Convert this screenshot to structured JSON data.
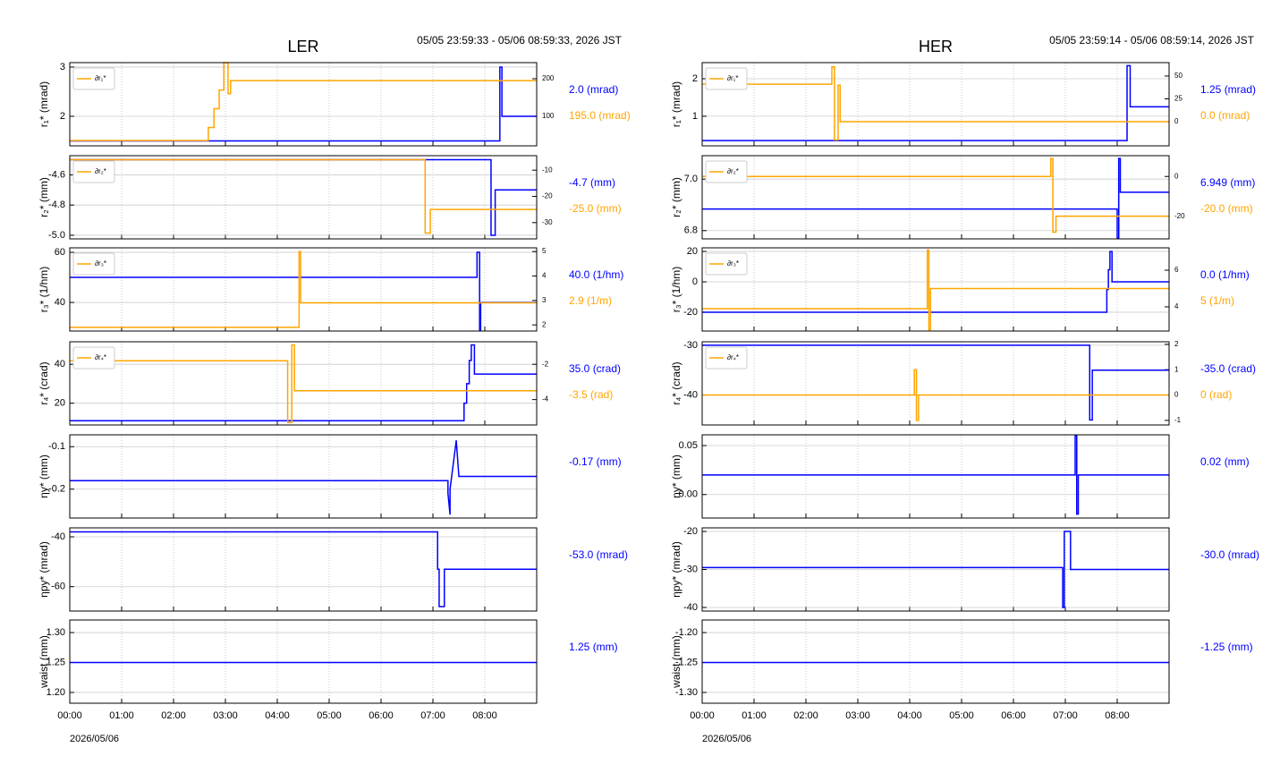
{
  "chart_data": [
    {
      "type": "line",
      "title": "LER",
      "subtitle": "05/05 23:59:33 - 05/06 08:59:33, 2026 JST",
      "ylabel": "r₁* (mrad)",
      "xlim": [
        0,
        9
      ],
      "xticks": [
        0,
        1,
        2,
        3,
        4,
        5,
        6,
        7,
        8
      ],
      "ylim": [
        1.4,
        3.09
      ],
      "yticks": [
        2,
        3
      ],
      "y2lim": [
        21,
        243
      ],
      "y2ticks": [
        100,
        200
      ],
      "grid": true,
      "series": [
        {
          "color": "#0000ff",
          "x": [
            0,
            8.29,
            8.29,
            8.33,
            8.33,
            9
          ],
          "values": [
            1.5,
            1.5,
            3.0,
            3.0,
            2.0,
            2.0
          ]
        },
        {
          "name": "∂r₁*",
          "color": "#ffa500",
          "axis": "y2",
          "x": [
            0,
            2.67,
            2.67,
            2.78,
            2.78,
            2.88,
            2.88,
            2.97,
            2.97,
            3.05,
            3.05,
            3.1,
            3.1,
            9
          ],
          "values": [
            35,
            35,
            70,
            70,
            120,
            120,
            170,
            170,
            243,
            243,
            160,
            160,
            195,
            195
          ]
        }
      ],
      "annotations": [
        {
          "text": "2.0 (mrad)",
          "color": "#0000ff"
        },
        {
          "text": "195.0 (mrad)",
          "color": "#ffa500"
        }
      ]
    },
    {
      "type": "line",
      "ylabel": "r₂* (mm)",
      "xlim": [
        0,
        9
      ],
      "xticks": [
        0,
        1,
        2,
        3,
        4,
        5,
        6,
        7,
        8
      ],
      "ylim": [
        -5.024,
        -4.473
      ],
      "yticks": [
        -4.6,
        -4.8,
        {
          "value": -5,
          "label": "-5.0"
        }
      ],
      "y2lim": [
        -36.2,
        -4.48
      ],
      "y2ticks": [
        -10,
        -20,
        -30
      ],
      "grid": true,
      "series": [
        {
          "color": "#0000ff",
          "x": [
            0,
            8.12,
            8.12,
            8.2,
            8.2,
            9
          ],
          "values": [
            -4.5,
            -4.5,
            -5.0,
            -5.0,
            -4.7,
            -4.7
          ]
        },
        {
          "name": "∂r₂*",
          "color": "#ffa500",
          "axis": "y2",
          "x": [
            0,
            6.85,
            6.85,
            6.95,
            6.95,
            9
          ],
          "values": [
            -6,
            -6,
            -34,
            -34,
            -25,
            -25
          ]
        }
      ],
      "annotations": [
        {
          "text": "-4.7 (mm)",
          "color": "#0000ff"
        },
        {
          "text": "-25.0 (mm)",
          "color": "#ffa500"
        }
      ]
    },
    {
      "type": "line",
      "ylabel": "r₃* (1/hm)",
      "xlim": [
        0,
        9
      ],
      "xticks": [
        0,
        1,
        2,
        3,
        4,
        5,
        6,
        7,
        8
      ],
      "ylim": [
        28.6,
        61.8
      ],
      "yticks": [
        60,
        40
      ],
      "y2lim": [
        1.75,
        5.15
      ],
      "y2ticks": [
        5,
        4,
        3,
        2
      ],
      "grid": true,
      "series": [
        {
          "color": "#0000ff",
          "x": [
            0,
            7.85,
            7.85,
            7.9,
            7.9,
            7.92,
            7.92,
            9
          ],
          "values": [
            50,
            50,
            60,
            60,
            29,
            29,
            40,
            40
          ]
        },
        {
          "name": "∂r₃*",
          "color": "#ffa500",
          "axis": "y2",
          "x": [
            0,
            4.42,
            4.42,
            4.45,
            4.45,
            9
          ],
          "values": [
            1.9,
            1.9,
            5,
            5,
            2.9,
            2.9
          ]
        }
      ],
      "annotations": [
        {
          "text": "40.0 (1/hm)",
          "color": "#0000ff"
        },
        {
          "text": "2.9 (1/m)",
          "color": "#ffa500"
        }
      ]
    },
    {
      "type": "line",
      "ylabel": "r₄* (crad)",
      "xlim": [
        0,
        9
      ],
      "xticks": [
        0,
        1,
        2,
        3,
        4,
        5,
        6,
        7,
        8
      ],
      "ylim": [
        8.8,
        51.6
      ],
      "yticks": [
        40,
        20
      ],
      "y2lim": [
        -5.44,
        -0.72
      ],
      "y2ticks": [
        -2,
        -4
      ],
      "grid": true,
      "series": [
        {
          "color": "#0000ff",
          "x": [
            0,
            7.57,
            7.6,
            7.6,
            7.65,
            7.65,
            7.7,
            7.7,
            7.74,
            7.74,
            7.8,
            7.8,
            9
          ],
          "values": [
            11,
            11,
            11,
            20,
            20,
            30,
            30,
            42,
            42,
            50,
            50,
            35,
            35
          ]
        },
        {
          "name": "∂r₄*",
          "color": "#ffa500",
          "axis": "y2",
          "x": [
            0,
            4.2,
            4.2,
            4.28,
            4.28,
            4.33,
            4.33,
            9
          ],
          "values": [
            -1.8,
            -1.8,
            -5.3,
            -5.3,
            -0.9,
            -0.9,
            -3.5,
            -3.5
          ]
        }
      ],
      "annotations": [
        {
          "text": "35.0 (crad)",
          "color": "#0000ff"
        },
        {
          "text": "-3.5 (rad)",
          "color": "#ffa500"
        }
      ]
    },
    {
      "type": "line",
      "ylabel": "ηy* (mm)",
      "xlim": [
        0,
        9
      ],
      "xticks": [
        0,
        1,
        2,
        3,
        4,
        5,
        6,
        7,
        8
      ],
      "ylim": [
        -0.268,
        -0.072
      ],
      "yticks": [
        -0.1,
        -0.2
      ],
      "grid": true,
      "series": [
        {
          "color": "#0000ff",
          "x": [
            0,
            7.29,
            7.29,
            7.33,
            7.33,
            7.45,
            7.45,
            7.5,
            7.5,
            9
          ],
          "values": [
            -0.18,
            -0.18,
            -0.21,
            -0.26,
            -0.2,
            -0.085,
            -0.085,
            -0.17,
            -0.17,
            -0.17
          ]
        }
      ],
      "annotations": [
        {
          "text": "-0.17 (mm)",
          "color": "#0000ff"
        }
      ]
    },
    {
      "type": "line",
      "ylabel": "ηpy* (mrad)",
      "xlim": [
        0,
        9
      ],
      "xticks": [
        0,
        1,
        2,
        3,
        4,
        5,
        6,
        7,
        8
      ],
      "ylim": [
        -69.8,
        -36.4
      ],
      "yticks": [
        -40,
        -60
      ],
      "grid": true,
      "series": [
        {
          "color": "#0000ff",
          "x": [
            0,
            7.09,
            7.09,
            7.12,
            7.12,
            7.22,
            7.22,
            9
          ],
          "values": [
            -38,
            -38,
            -53,
            -53,
            -68,
            -68,
            -53,
            -53
          ]
        }
      ],
      "annotations": [
        {
          "text": "-53.0 (mrad)",
          "color": "#0000ff"
        }
      ]
    },
    {
      "type": "line",
      "ylabel": "waist (mm)",
      "xlabel": "2026/05/06",
      "xlim": [
        0,
        9
      ],
      "xticks": [
        {
          "value": 0,
          "label": "00:00"
        },
        {
          "value": 1,
          "label": "01:00"
        },
        {
          "value": 2,
          "label": "02:00"
        },
        {
          "value": 3,
          "label": "03:00"
        },
        {
          "value": 4,
          "label": "04:00"
        },
        {
          "value": 5,
          "label": "05:00"
        },
        {
          "value": 6,
          "label": "06:00"
        },
        {
          "value": 7,
          "label": "07:00"
        },
        {
          "value": 8,
          "label": "08:00"
        }
      ],
      "ylim": [
        1.182,
        1.321
      ],
      "yticks": [
        {
          "value": 1.3,
          "label": "1.30"
        },
        1.25,
        {
          "value": 1.2,
          "label": "1.20"
        }
      ],
      "grid": true,
      "series": [
        {
          "color": "#0000ff",
          "x": [
            0,
            9
          ],
          "values": [
            1.25,
            1.25
          ]
        }
      ],
      "annotations": [
        {
          "text": "1.25 (mm)",
          "color": "#0000ff"
        }
      ]
    },
    {
      "type": "line",
      "title": "HER",
      "subtitle": "05/05 23:59:14 - 05/06 08:59:14, 2026 JST",
      "ylabel": "r₁* (mrad)",
      "xlim": [
        0,
        9
      ],
      "xticks": [
        0,
        1,
        2,
        3,
        4,
        5,
        6,
        7,
        8
      ],
      "ylim": [
        0.21,
        2.43
      ],
      "yticks": [
        2,
        1
      ],
      "y2lim": [
        -26.5,
        64.7
      ],
      "y2ticks": [
        50,
        25,
        0
      ],
      "grid": true,
      "series": [
        {
          "color": "#0000ff",
          "x": [
            0,
            8.19,
            8.19,
            8.25,
            8.25,
            9
          ],
          "values": [
            0.35,
            0.35,
            2.35,
            2.35,
            1.25,
            1.25
          ]
        },
        {
          "name": "∂r₁*",
          "color": "#ffa500",
          "axis": "y2",
          "x": [
            0,
            2.5,
            2.5,
            2.55,
            2.55,
            2.62,
            2.62,
            2.66,
            2.66,
            9
          ],
          "values": [
            41,
            41,
            60,
            60,
            -20,
            -20,
            40,
            40,
            0,
            0
          ]
        }
      ],
      "annotations": [
        {
          "text": "1.25 (mrad)",
          "color": "#0000ff"
        },
        {
          "text": "0.0 (mrad)",
          "color": "#ffa500"
        }
      ]
    },
    {
      "type": "line",
      "ylabel": "r₂* (mm)",
      "xlim": [
        0,
        9
      ],
      "xticks": [
        0,
        1,
        2,
        3,
        4,
        5,
        6,
        7,
        8
      ],
      "ylim": [
        6.768,
        7.091
      ],
      "yticks": [
        {
          "value": 7,
          "label": "7.0"
        },
        6.8
      ],
      "y2lim": [
        -31.4,
        10.45
      ],
      "y2ticks": [
        0,
        -20
      ],
      "grid": true,
      "series": [
        {
          "color": "#0000ff",
          "x": [
            0,
            8.0,
            8.0,
            8.03,
            8.03,
            8.06,
            8.06,
            9
          ],
          "values": [
            6.884,
            6.884,
            6.77,
            6.77,
            7.08,
            7.08,
            6.949,
            6.949
          ]
        },
        {
          "name": "∂r₂*",
          "color": "#ffa500",
          "axis": "y2",
          "x": [
            0,
            6.72,
            6.72,
            6.76,
            6.76,
            6.82,
            6.82,
            9
          ],
          "values": [
            0,
            0,
            9,
            9,
            -28,
            -28,
            -20,
            -20
          ]
        }
      ],
      "annotations": [
        {
          "text": "6.949 (mm)",
          "color": "#0000ff"
        },
        {
          "text": "-20.0 (mm)",
          "color": "#ffa500"
        }
      ]
    },
    {
      "type": "line",
      "ylabel": "r₃* (1/hm)",
      "xlim": [
        0,
        9
      ],
      "xticks": [
        0,
        1,
        2,
        3,
        4,
        5,
        6,
        7,
        8
      ],
      "ylim": [
        -32.4,
        22.4
      ],
      "yticks": [
        20,
        0,
        -20
      ],
      "y2lim": [
        2.68,
        7.22
      ],
      "y2ticks": [
        6,
        4
      ],
      "grid": true,
      "series": [
        {
          "color": "#0000ff",
          "x": [
            0,
            7.79,
            7.8,
            7.8,
            7.83,
            7.83,
            7.86,
            7.86,
            7.9,
            7.9,
            9
          ],
          "values": [
            -20,
            -20,
            -20,
            -5,
            -5,
            8,
            8,
            20,
            20,
            0,
            0
          ]
        },
        {
          "name": "∂r₃*",
          "color": "#ffa500",
          "axis": "y2",
          "x": [
            0,
            4.34,
            4.34,
            4.37,
            4.37,
            4.4,
            4.4,
            9
          ],
          "values": [
            3.9,
            3.9,
            7.1,
            7.1,
            2.75,
            2.75,
            5,
            5
          ]
        }
      ],
      "annotations": [
        {
          "text": "0.0 (1/hm)",
          "color": "#0000ff"
        },
        {
          "text": "5 (1/m)",
          "color": "#ffa500"
        }
      ]
    },
    {
      "type": "line",
      "ylabel": "r₄* (crad)",
      "xlim": [
        0,
        9
      ],
      "xticks": [
        0,
        1,
        2,
        3,
        4,
        5,
        6,
        7,
        8
      ],
      "ylim": [
        -46,
        -29.3
      ],
      "yticks": [
        -30,
        -40
      ],
      "y2lim": [
        -1.18,
        2.1
      ],
      "y2ticks": [
        2,
        1,
        0,
        -1
      ],
      "grid": true,
      "series": [
        {
          "color": "#0000ff",
          "x": [
            0,
            7.47,
            7.47,
            7.52,
            7.52,
            9
          ],
          "values": [
            -30,
            -30,
            -45,
            -45,
            -35,
            -35
          ]
        },
        {
          "name": "∂r₄*",
          "color": "#ffa500",
          "axis": "y2",
          "x": [
            0,
            4.09,
            4.09,
            4.13,
            4.13,
            4.17,
            4.17,
            9
          ],
          "values": [
            0,
            0,
            1.0,
            1.0,
            -1,
            -1,
            0,
            0
          ]
        }
      ],
      "annotations": [
        {
          "text": "-35.0 (crad)",
          "color": "#0000ff"
        },
        {
          "text": "0 (rad)",
          "color": "#ffa500"
        }
      ]
    },
    {
      "type": "line",
      "ylabel": "ηy* (mm)",
      "xlim": [
        0,
        9
      ],
      "xticks": [
        0,
        1,
        2,
        3,
        4,
        5,
        6,
        7,
        8
      ],
      "ylim": [
        -0.024,
        0.061
      ],
      "yticks": [
        0.05,
        {
          "value": 0,
          "label": "0.00"
        }
      ],
      "grid": true,
      "series": [
        {
          "color": "#0000ff",
          "x": [
            0,
            7.19,
            7.19,
            7.22,
            7.22,
            7.25,
            7.25,
            9
          ],
          "values": [
            0.02,
            0.02,
            0.06,
            0.06,
            -0.02,
            -0.02,
            0.02,
            0.02
          ]
        }
      ],
      "annotations": [
        {
          "text": "0.02 (mm)",
          "color": "#0000ff"
        }
      ]
    },
    {
      "type": "line",
      "ylabel": "ηpy* (mrad)",
      "xlim": [
        0,
        9
      ],
      "xticks": [
        0,
        1,
        2,
        3,
        4,
        5,
        6,
        7,
        8
      ],
      "ylim": [
        -40.95,
        -19.05
      ],
      "yticks": [
        -20,
        -30,
        -40
      ],
      "grid": true,
      "series": [
        {
          "color": "#0000ff",
          "x": [
            0,
            6.95,
            6.95,
            6.98,
            6.98,
            7.1,
            7.1,
            9
          ],
          "values": [
            -29.5,
            -29.5,
            -40,
            -40,
            -20,
            -20,
            -30,
            -30
          ]
        }
      ],
      "annotations": [
        {
          "text": "-30.0 (mrad)",
          "color": "#0000ff"
        }
      ]
    },
    {
      "type": "line",
      "ylabel": "waist (mm)",
      "xlabel": "2026/05/06",
      "xlim": [
        0,
        9
      ],
      "xticks": [
        {
          "value": 0,
          "label": "00:00"
        },
        {
          "value": 1,
          "label": "01:00"
        },
        {
          "value": 2,
          "label": "02:00"
        },
        {
          "value": 3,
          "label": "03:00"
        },
        {
          "value": 4,
          "label": "04:00"
        },
        {
          "value": 5,
          "label": "05:00"
        },
        {
          "value": 6,
          "label": "06:00"
        },
        {
          "value": 7,
          "label": "07:00"
        },
        {
          "value": 8,
          "label": "08:00"
        }
      ],
      "ylim": [
        -1.318,
        -1.179
      ],
      "yticks": [
        {
          "value": -1.2,
          "label": "-1.20"
        },
        -1.25,
        {
          "value": -1.3,
          "label": "-1.30"
        }
      ],
      "grid": true,
      "series": [
        {
          "color": "#0000ff",
          "x": [
            0,
            9
          ],
          "values": [
            -1.25,
            -1.25
          ]
        }
      ],
      "annotations": [
        {
          "text": "-1.25 (mm)",
          "color": "#0000ff"
        }
      ]
    }
  ]
}
